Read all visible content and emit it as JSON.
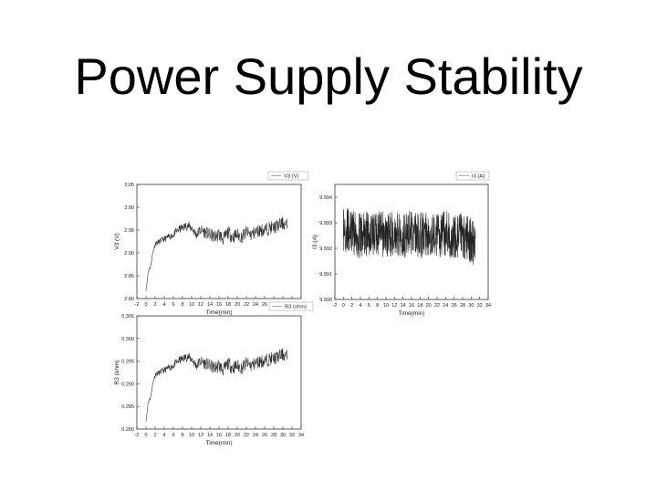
{
  "slide": {
    "title": "Power Supply Stability"
  },
  "chart_data": [
    {
      "type": "line",
      "ylabel": "V3 (V)",
      "xlabel": "Time(min)",
      "xlim": [
        -2,
        34
      ],
      "ylim": [
        2.8,
        3.05
      ],
      "xticks": [
        "-2",
        "0",
        "2",
        "4",
        "6",
        "8",
        "10",
        "12",
        "14",
        "16",
        "18",
        "20",
        "22",
        "24",
        "26",
        "28",
        "30",
        "32",
        "34"
      ],
      "yticks": [
        "2.80",
        "2.85",
        "2.90",
        "2.95",
        "3.00",
        "3.05"
      ],
      "legend": "V3 (V)",
      "legend_position": "top-right",
      "series": [
        {
          "name": "V3 (V)",
          "color": "#333333",
          "x": [
            0,
            0.5,
            1,
            1.5,
            2,
            3,
            4,
            5,
            6,
            7,
            8,
            9,
            10,
            11,
            12,
            13,
            14,
            15,
            16,
            17,
            18,
            19,
            20,
            21,
            22,
            23,
            24,
            25,
            26,
            27,
            28,
            29,
            30,
            31
          ],
          "y": [
            2.82,
            2.86,
            2.87,
            2.9,
            2.92,
            2.925,
            2.93,
            2.935,
            2.94,
            2.95,
            2.955,
            2.96,
            2.955,
            2.94,
            2.95,
            2.945,
            2.94,
            2.935,
            2.94,
            2.93,
            2.945,
            2.935,
            2.94,
            2.935,
            2.945,
            2.94,
            2.945,
            2.95,
            2.95,
            2.955,
            2.955,
            2.96,
            2.965,
            2.96
          ]
        }
      ]
    },
    {
      "type": "line",
      "ylabel": "I3 (A)",
      "xlabel": "Time(min)",
      "xlim": [
        -2,
        34
      ],
      "ylim": [
        9.99,
        9.9945
      ],
      "xticks": [
        "-2",
        "0",
        "2",
        "4",
        "6",
        "8",
        "10",
        "12",
        "14",
        "16",
        "18",
        "20",
        "22",
        "24",
        "26",
        "28",
        "30",
        "32",
        "34"
      ],
      "yticks": [
        "9.990",
        "9.991",
        "9.992",
        "9.993",
        "9.994"
      ],
      "legend": "I3 (A)",
      "legend_position": "top-right",
      "series": [
        {
          "name": "I3 (A)",
          "color": "#222222",
          "x": [
            0,
            2,
            4,
            6,
            8,
            10,
            12,
            14,
            16,
            18,
            20,
            22,
            24,
            26,
            28,
            30,
            31
          ],
          "y": [
            9.9928,
            9.9926,
            9.9925,
            9.9926,
            9.9926,
            9.9925,
            9.9926,
            9.9925,
            9.9926,
            9.9925,
            9.9926,
            9.9925,
            9.9926,
            9.9924,
            9.9925,
            9.9923,
            9.992
          ]
        }
      ]
    },
    {
      "type": "line",
      "ylabel": "R3 (ohm)",
      "xlabel": "Time(min)",
      "xlim": [
        -2,
        34
      ],
      "ylim": [
        0.28,
        0.305
      ],
      "xticks": [
        "-2",
        "0",
        "2",
        "4",
        "6",
        "8",
        "10",
        "12",
        "14",
        "16",
        "18",
        "20",
        "22",
        "24",
        "26",
        "28",
        "30",
        "32",
        "34"
      ],
      "yticks": [
        "0.280",
        "0.285",
        "0.290",
        "0.295",
        "0.300",
        "0.305"
      ],
      "legend": "R3 (ohm)",
      "legend_position": "top-right",
      "series": [
        {
          "name": "R3 (ohm)",
          "color": "#333333",
          "x": [
            0,
            0.5,
            1,
            1.5,
            2,
            3,
            4,
            5,
            6,
            7,
            8,
            9,
            10,
            11,
            12,
            13,
            14,
            15,
            16,
            17,
            18,
            19,
            20,
            21,
            22,
            23,
            24,
            25,
            26,
            27,
            28,
            29,
            30,
            31
          ],
          "y": [
            0.282,
            0.286,
            0.287,
            0.29,
            0.292,
            0.2925,
            0.293,
            0.2935,
            0.294,
            0.295,
            0.2955,
            0.296,
            0.2955,
            0.294,
            0.295,
            0.2945,
            0.294,
            0.2935,
            0.294,
            0.293,
            0.2945,
            0.2935,
            0.294,
            0.2935,
            0.2945,
            0.294,
            0.2945,
            0.295,
            0.295,
            0.2955,
            0.2955,
            0.296,
            0.2965,
            0.296
          ]
        }
      ]
    }
  ]
}
